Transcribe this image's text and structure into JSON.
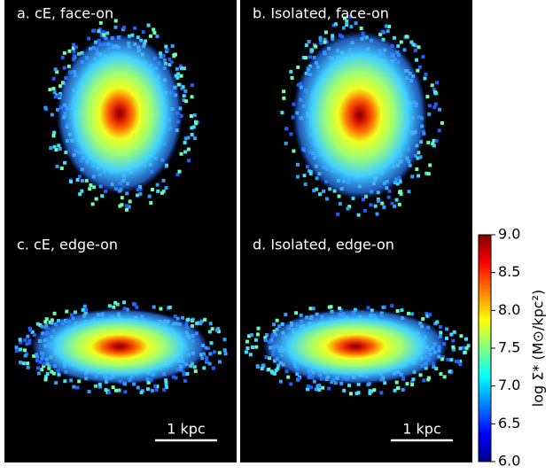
{
  "chart_data": {
    "type": "image",
    "panels": [
      {
        "title": "a. cE, face-on"
      },
      {
        "title": "b. Isolated, face-on"
      },
      {
        "title": "c. cE, edge-on",
        "scale_bar": "1 kpc"
      },
      {
        "title": "d. Isolated, edge-on",
        "scale_bar": "1 kpc"
      }
    ],
    "colorbar": {
      "label": "log Σ* (M⊙/kpc²)",
      "lim": [
        6,
        9
      ],
      "ticks": [
        {
          "value": 6,
          "label": "6.0"
        },
        {
          "value": 6.5,
          "label": "6.5"
        },
        {
          "value": 7,
          "label": "7.0"
        },
        {
          "value": 7.5,
          "label": "7.5"
        },
        {
          "value": 8,
          "label": "8.0"
        },
        {
          "value": 8.5,
          "label": "8.5"
        },
        {
          "value": 9,
          "label": "9.0"
        }
      ],
      "colormap": "jet"
    }
  }
}
